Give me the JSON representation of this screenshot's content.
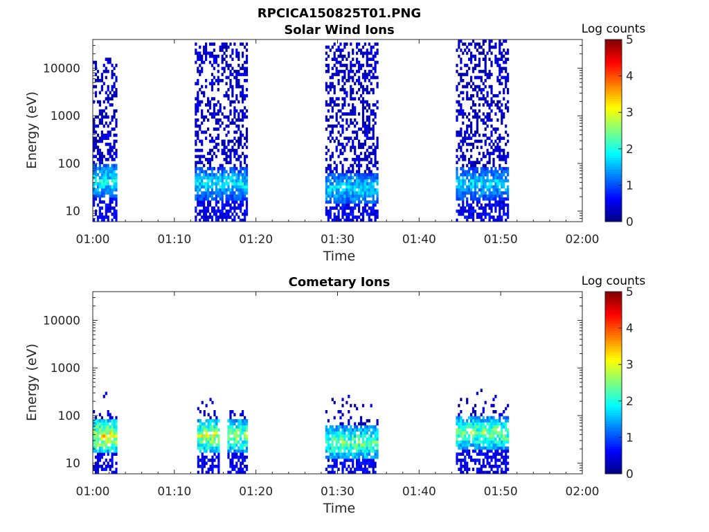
{
  "figure": {
    "title": "RPCICA150825T01.PNG"
  },
  "colorbar_colors": [
    "#00007f",
    "#0000ff",
    "#007fff",
    "#00ffff",
    "#7fff7f",
    "#ffff00",
    "#ff7f00",
    "#ff0000",
    "#7f0000"
  ],
  "chart_data": [
    {
      "type": "heatmap",
      "title": "Solar Wind Ions",
      "xlabel": "Time",
      "ylabel": "Energy (eV)",
      "x_ticks": [
        "01:00",
        "01:10",
        "01:20",
        "01:30",
        "01:40",
        "01:50",
        "02:00"
      ],
      "y_ticks": [
        "10",
        "100",
        "1000",
        "10000"
      ],
      "y_scale": "log",
      "ylim": [
        6,
        40000
      ],
      "xlim_minutes": [
        0,
        60
      ],
      "colorbar": {
        "label": "Log counts",
        "ticks": [
          "0",
          "1",
          "2",
          "3",
          "4",
          "5"
        ],
        "range": [
          0,
          5
        ]
      },
      "bursts": [
        {
          "start_min": 0.0,
          "end_min": 3.0,
          "low_energy_peak_eV": 40,
          "peak_log_counts": 2.4,
          "max_energy_eV": 16000
        },
        {
          "start_min": 12.5,
          "end_min": 18.8,
          "low_energy_peak_eV": 35,
          "peak_log_counts": 2.2,
          "max_energy_eV": 32000
        },
        {
          "start_min": 28.5,
          "end_min": 34.8,
          "low_energy_peak_eV": 28,
          "peak_log_counts": 2.2,
          "max_energy_eV": 30000
        },
        {
          "start_min": 44.5,
          "end_min": 50.8,
          "low_energy_peak_eV": 35,
          "peak_log_counts": 2.1,
          "max_energy_eV": 38000
        }
      ]
    },
    {
      "type": "heatmap",
      "title": "Cometary Ions",
      "xlabel": "Time",
      "ylabel": "Energy (eV)",
      "x_ticks": [
        "01:00",
        "01:10",
        "01:20",
        "01:30",
        "01:40",
        "01:50",
        "02:00"
      ],
      "y_ticks": [
        "10",
        "100",
        "1000",
        "10000"
      ],
      "y_scale": "log",
      "ylim": [
        6,
        40000
      ],
      "xlim_minutes": [
        0,
        60
      ],
      "colorbar": {
        "label": "Log counts",
        "ticks": [
          "0",
          "1",
          "2",
          "3",
          "4",
          "5"
        ],
        "range": [
          0,
          5
        ]
      },
      "bursts": [
        {
          "start_min": 0.0,
          "end_min": 3.0,
          "low_energy_peak_eV": 35,
          "peak_log_counts": 3.8,
          "max_energy_eV": 300
        },
        {
          "start_min": 12.8,
          "end_min": 15.5,
          "low_energy_peak_eV": 35,
          "peak_log_counts": 3.5,
          "max_energy_eV": 250
        },
        {
          "start_min": 16.5,
          "end_min": 18.8,
          "low_energy_peak_eV": 35,
          "peak_log_counts": 3.2,
          "max_energy_eV": 120
        },
        {
          "start_min": 28.5,
          "end_min": 34.8,
          "low_energy_peak_eV": 25,
          "peak_log_counts": 3.0,
          "max_energy_eV": 250
        },
        {
          "start_min": 44.5,
          "end_min": 50.8,
          "low_energy_peak_eV": 40,
          "peak_log_counts": 3.1,
          "max_energy_eV": 450
        }
      ]
    }
  ]
}
